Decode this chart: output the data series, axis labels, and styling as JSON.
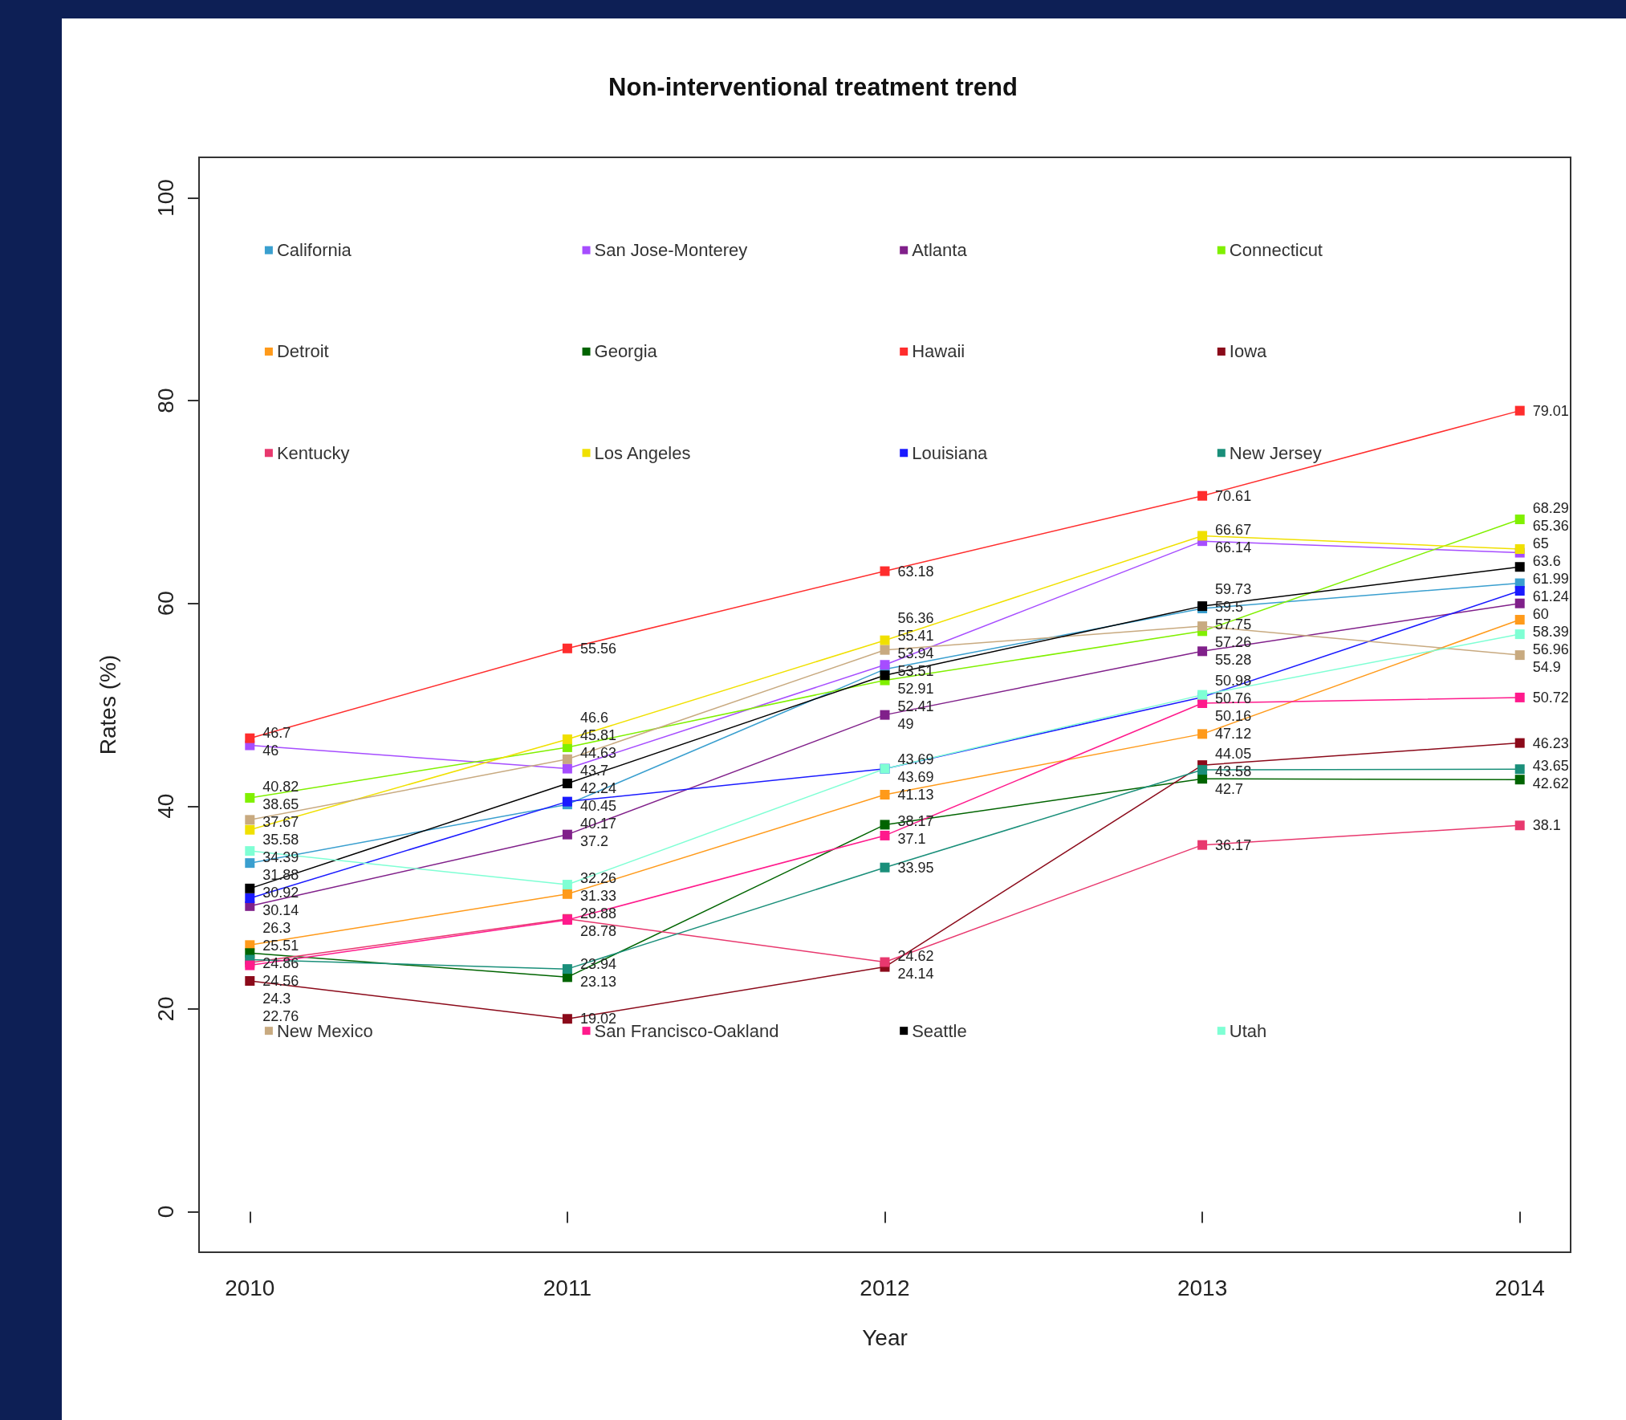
{
  "chart_data": {
    "type": "line",
    "title": "Non-interventional treatment trend",
    "xlabel": "Year",
    "ylabel": "Rates (%)",
    "x": [
      2010,
      2011,
      2012,
      2013,
      2014
    ],
    "xlim": [
      2009.84,
      2014.16
    ],
    "xticks": [
      2010,
      2011,
      2012,
      2013,
      2014
    ],
    "ylim": [
      -4,
      104
    ],
    "yticks": [
      0,
      20,
      40,
      60,
      80,
      100
    ],
    "grid": false,
    "legend": "top",
    "marker": "square",
    "line_style": "solid",
    "data_labels": true,
    "series": [
      {
        "name": "California",
        "color": "#3a9fcf",
        "values": [
          34.39,
          40.17,
          53.51,
          59.5,
          61.99
        ]
      },
      {
        "name": "San Jose-Monterey",
        "color": "#a64dff",
        "values": [
          46,
          43.7,
          53.94,
          66.14,
          65.0
        ]
      },
      {
        "name": "Atlanta",
        "color": "#80208a",
        "values": [
          30.14,
          37.2,
          49,
          55.28,
          60
        ]
      },
      {
        "name": "Connecticut",
        "color": "#80f000",
        "values": [
          40.82,
          45.81,
          52.41,
          57.26,
          68.29
        ]
      },
      {
        "name": "Detroit",
        "color": "#ff9a1a",
        "values": [
          26.3,
          31.33,
          41.13,
          47.12,
          58.39
        ]
      },
      {
        "name": "Georgia",
        "color": "#006400",
        "values": [
          25.51,
          23.13,
          38.17,
          42.7,
          42.62
        ]
      },
      {
        "name": "Hawaii",
        "color": "#ff2d2d",
        "values": [
          46.7,
          55.56,
          63.18,
          70.61,
          79.01
        ]
      },
      {
        "name": "Iowa",
        "color": "#8b0a1a",
        "values": [
          22.76,
          19.02,
          24.14,
          44.05,
          46.23
        ]
      },
      {
        "name": "Kentucky",
        "color": "#e8386e",
        "values": [
          24.56,
          28.88,
          24.62,
          36.17,
          38.1
        ]
      },
      {
        "name": "Los Angeles",
        "color": "#f0e000",
        "values": [
          37.67,
          46.6,
          56.36,
          66.67,
          65.36
        ]
      },
      {
        "name": "Louisiana",
        "color": "#1a1aff",
        "values": [
          30.92,
          40.45,
          43.69,
          50.76,
          61.24
        ]
      },
      {
        "name": "New Jersey",
        "color": "#1a8f7a",
        "values": [
          24.86,
          23.94,
          33.95,
          43.58,
          43.65
        ]
      },
      {
        "name": "New Mexico",
        "color": "#c8aa80",
        "values": [
          38.65,
          44.63,
          55.41,
          57.75,
          54.9
        ]
      },
      {
        "name": "San Francisco-Oakland",
        "color": "#ff1a8c",
        "values": [
          24.3,
          28.78,
          37.1,
          50.16,
          50.72
        ]
      },
      {
        "name": "Seattle",
        "color": "#000000",
        "values": [
          31.88,
          42.24,
          52.91,
          59.73,
          63.6
        ]
      },
      {
        "name": "Utah",
        "color": "#7fffd4",
        "values": [
          35.58,
          32.26,
          43.69,
          50.98,
          56.96
        ]
      }
    ]
  }
}
